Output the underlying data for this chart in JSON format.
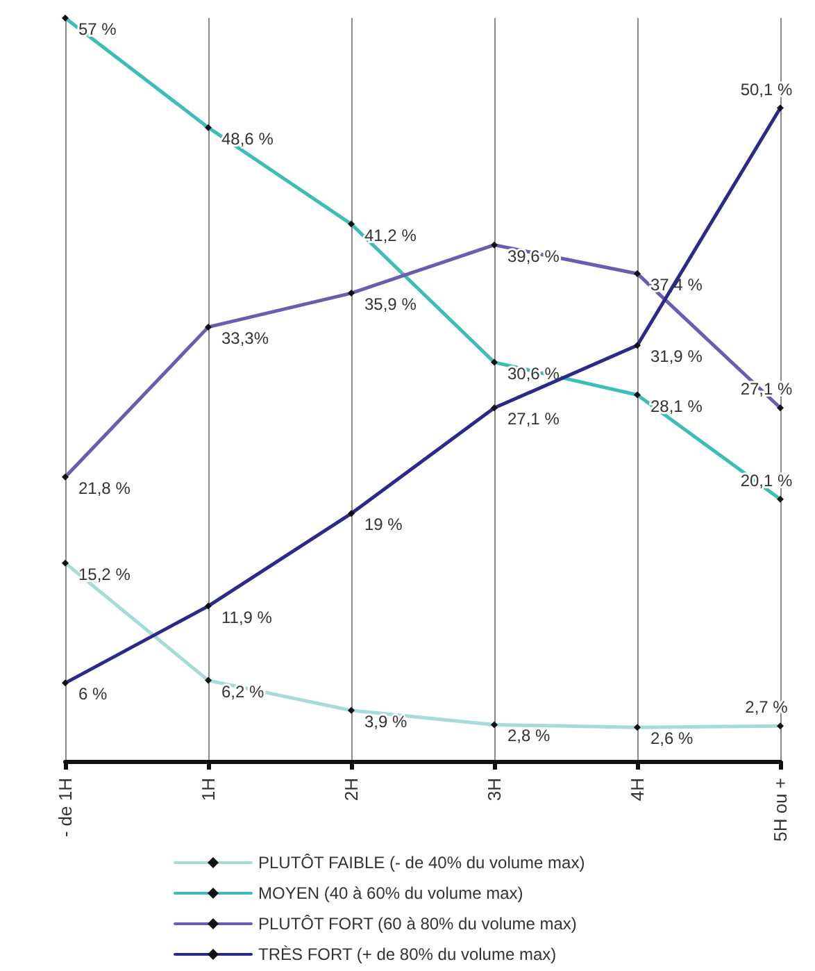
{
  "chart_data": {
    "type": "line",
    "categories": [
      "- de 1H",
      "1H",
      "2H",
      "3H",
      "4H",
      "5H ou +"
    ],
    "ylim": [
      0,
      57
    ],
    "grid": "x",
    "marker": "diamond",
    "line_style": "solid",
    "legend": "bottom",
    "tick_labels": "x",
    "series": [
      {
        "name": "PLUTÔT FAIBLE (- de 40% du volume max)",
        "color": "#a3dcd8",
        "values": [
          15.2,
          6.2,
          3.9,
          2.8,
          2.6,
          2.7
        ],
        "value_labels": [
          "15,2 %",
          "6,2 %",
          "3,9 %",
          "2,8 %",
          "2,6 %",
          "2,7 %"
        ]
      },
      {
        "name": "MOYEN (40 à 60% du volume max)",
        "color": "#3dbdb6",
        "values": [
          57,
          48.6,
          41.2,
          30.6,
          28.1,
          20.1
        ],
        "value_labels": [
          "57 %",
          "48,6 %",
          "41,2 %",
          "30,6 %",
          "28,1 %",
          "20,1 %"
        ]
      },
      {
        "name": "PLUTÔT FORT (60 à 80% du volume max)",
        "color": "#6a5cb0",
        "values": [
          21.8,
          33.3,
          35.9,
          39.6,
          37.4,
          27.1
        ],
        "value_labels": [
          "21,8 %",
          "33,3%",
          "35,9 %",
          "39,6 %",
          "37,4 %",
          "27,1 %"
        ]
      },
      {
        "name": "TRÈS FORT (+ de 80% du volume max)",
        "color": "#2b2a88",
        "values": [
          6,
          11.9,
          19,
          27.1,
          31.9,
          50.1
        ],
        "value_labels": [
          "6 %",
          "11,9 %",
          "19 %",
          "27,1 %",
          "31,9 %",
          "50,1 %"
        ]
      }
    ]
  }
}
